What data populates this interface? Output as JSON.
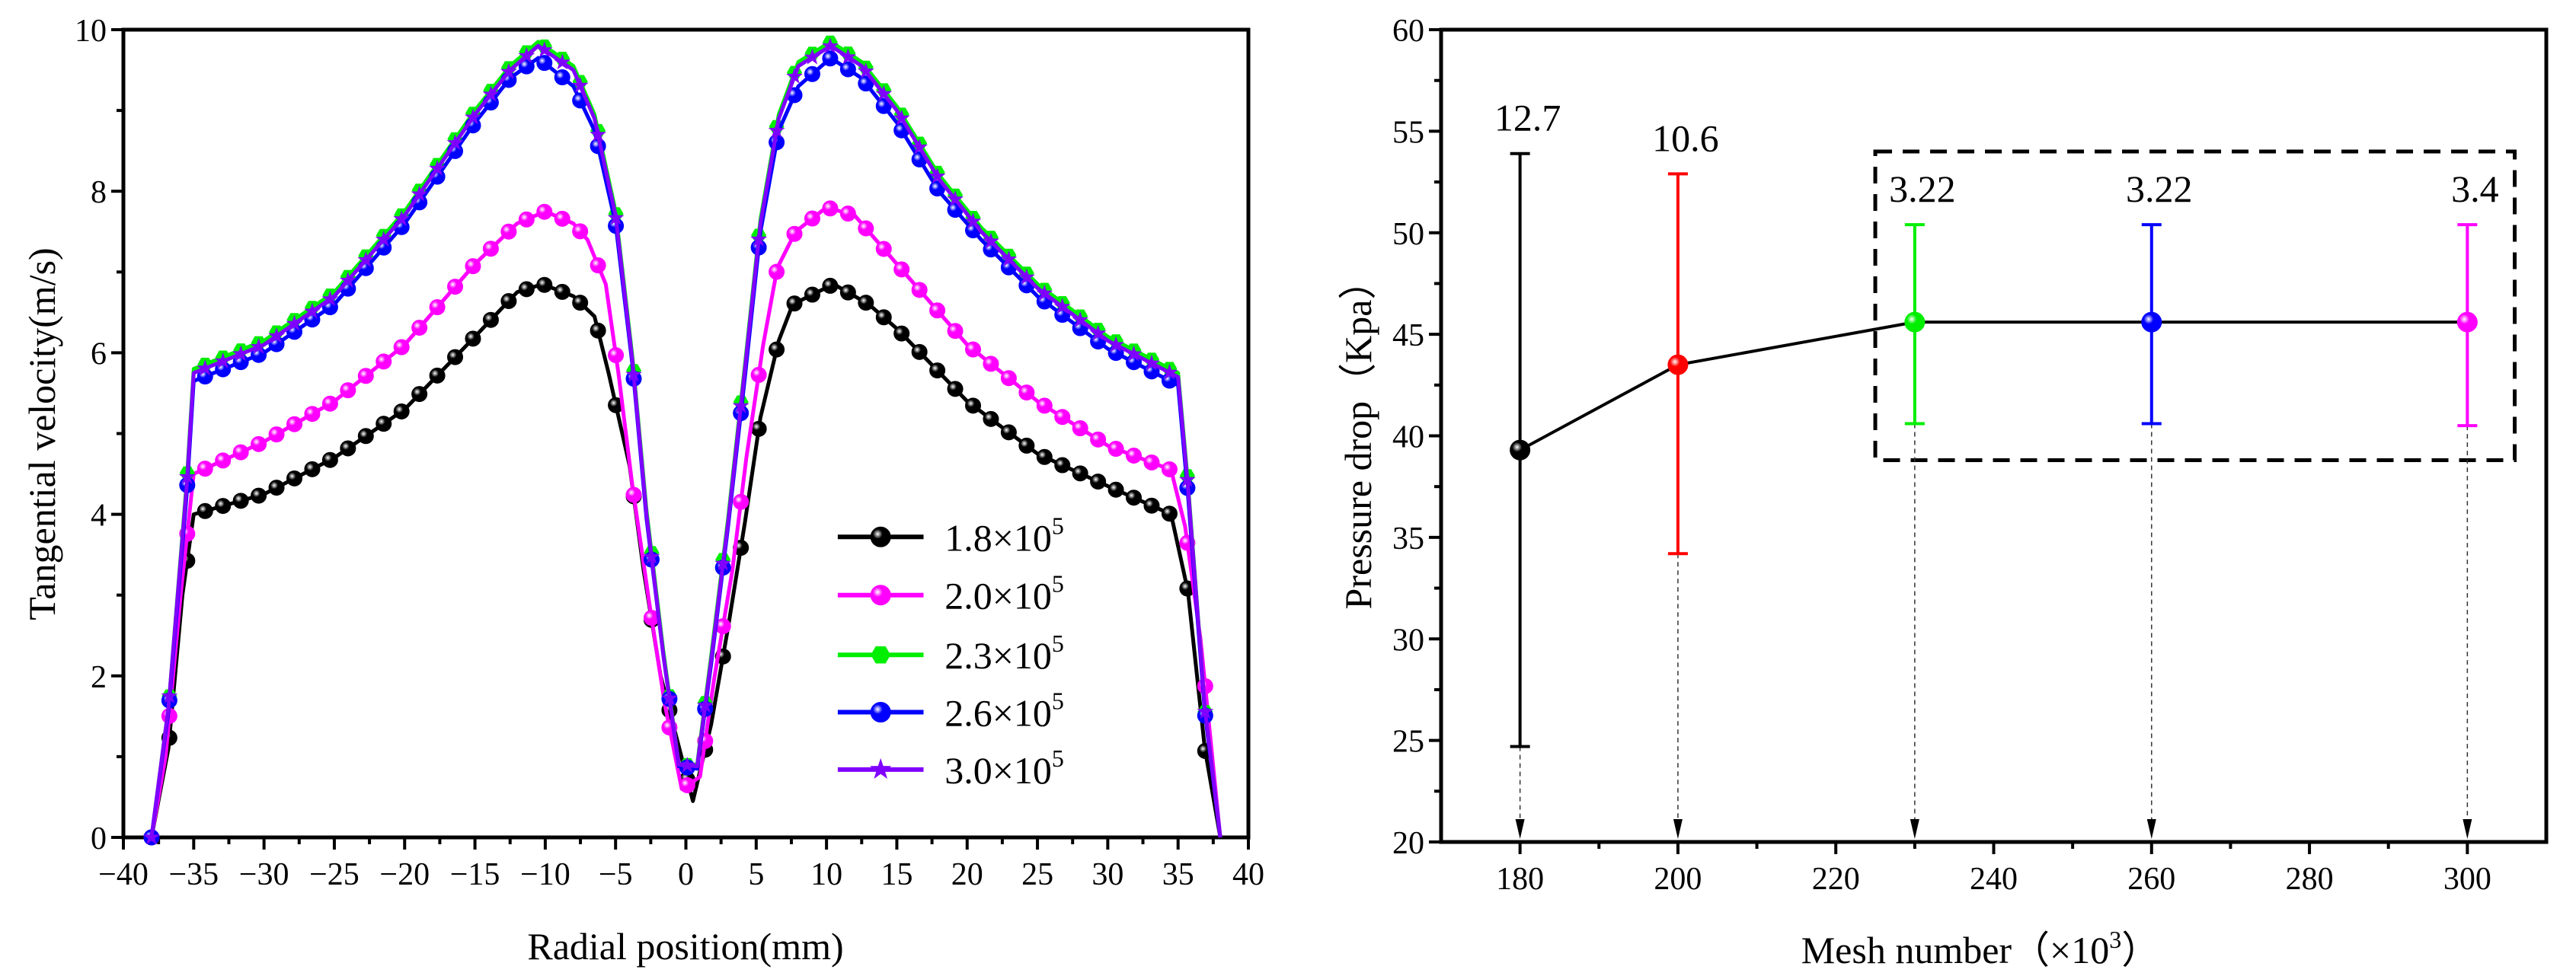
{
  "chart_data": [
    {
      "type": "line",
      "xlabel": "Radial position(mm)",
      "ylabel": "Tangential velocity(m/s)",
      "xlim": [
        -40,
        40
      ],
      "ylim": [
        0,
        10
      ],
      "xticks": [
        -40,
        -35,
        -30,
        -25,
        -20,
        -15,
        -10,
        -5,
        0,
        5,
        10,
        15,
        20,
        25,
        30,
        35,
        40
      ],
      "xtick_labels": [
        "−40",
        "−35",
        "−30",
        "−25",
        "−20",
        "−15",
        "−10",
        "−5",
        "0",
        "5",
        "10",
        "15",
        "20",
        "25",
        "30",
        "35",
        "40"
      ],
      "yticks": [
        0,
        2,
        4,
        6,
        8,
        10
      ],
      "ytick_labels": [
        "0",
        "2",
        "4",
        "6",
        "8",
        "10"
      ],
      "legend_position": "lower-right inside",
      "series": [
        {
          "name": "1.8×10",
          "sup": "5",
          "color": "#000000",
          "marker": "sphere",
          "x": [
            -38,
            -36.8,
            -35.8,
            -35,
            -30,
            -25,
            -20,
            -15,
            -12,
            -10.2,
            -8,
            -6.5,
            -5.5,
            -4,
            -3,
            -1.8,
            0.5,
            1.8,
            3,
            4.2,
            5.3,
            6.6,
            7.6,
            10.5,
            13,
            15,
            20,
            25,
            30,
            34.5,
            35.7,
            36.9,
            38
          ],
          "y": [
            0,
            1.1,
            3.0,
            4.0,
            4.25,
            4.7,
            5.3,
            6.2,
            6.75,
            6.85,
            6.7,
            6.45,
            5.75,
            4.6,
            3.3,
            2.0,
            0.45,
            1.4,
            2.6,
            3.9,
            5.2,
            6.15,
            6.6,
            6.85,
            6.6,
            6.3,
            5.4,
            4.75,
            4.35,
            4.0,
            3.05,
            1.1,
            0
          ]
        },
        {
          "name": "2.0×10",
          "sup": "5",
          "color": "#ff00ff",
          "marker": "sphere",
          "x": [
            -38,
            -37,
            -35.9,
            -35,
            -30,
            -25,
            -20,
            -15,
            -12,
            -10,
            -8,
            -7,
            -5.7,
            -4.8,
            -3.8,
            -2.6,
            -1.5,
            -0.3,
            1,
            2,
            3.3,
            4.3,
            5.5,
            6.5,
            7.8,
            10,
            12,
            15,
            20,
            25,
            30,
            34.5,
            35.5,
            36.6,
            38
          ],
          "y": [
            0,
            1.0,
            3.05,
            4.5,
            4.9,
            5.4,
            6.1,
            7.1,
            7.6,
            7.75,
            7.6,
            7.4,
            6.85,
            5.75,
            4.35,
            2.9,
            1.65,
            0.6,
            0.75,
            1.95,
            3.3,
            4.7,
            6.1,
            7.05,
            7.5,
            7.8,
            7.7,
            7.1,
            6.1,
            5.4,
            4.85,
            4.55,
            3.85,
            2.45,
            0
          ]
        },
        {
          "name": "2.3×10",
          "sup": "5",
          "color": "#00ee00",
          "marker": "hexagon",
          "x": [
            -38,
            -36.8,
            -35.5,
            -35,
            -30,
            -25,
            -20,
            -15,
            -12.5,
            -10.5,
            -8,
            -6.5,
            -5,
            -3.8,
            -2.8,
            -1.6,
            -0.5,
            0.8,
            1.8,
            3,
            4.2,
            5.3,
            6.6,
            8,
            10.3,
            12.5,
            15,
            18,
            21,
            25,
            30,
            35,
            35.7,
            36.9,
            38
          ],
          "y": [
            0,
            1.6,
            4.4,
            5.8,
            6.15,
            6.75,
            7.75,
            9.0,
            9.55,
            9.85,
            9.55,
            8.95,
            7.75,
            5.95,
            4.05,
            2.3,
            0.9,
            0.9,
            2.25,
            3.95,
            5.85,
            7.65,
            8.95,
            9.6,
            9.85,
            9.6,
            9.05,
            8.2,
            7.55,
            6.85,
            6.2,
            5.75,
            4.4,
            1.6,
            0
          ]
        },
        {
          "name": "2.6×10",
          "sup": "5",
          "color": "#0000ff",
          "marker": "sphere",
          "x": [
            -38,
            -36.8,
            -35.5,
            -35,
            -30,
            -25,
            -20,
            -15,
            -12.5,
            -10.5,
            -8,
            -6.5,
            -5,
            -3.8,
            -2.8,
            -1.6,
            -0.5,
            0.8,
            1.8,
            3,
            4.2,
            5.3,
            6.6,
            8,
            10.3,
            12.5,
            15,
            18,
            21,
            25,
            30,
            35,
            35.7,
            36.9,
            38
          ],
          "y": [
            0,
            1.55,
            4.25,
            5.65,
            6.0,
            6.6,
            7.6,
            8.85,
            9.4,
            9.65,
            9.3,
            8.75,
            7.6,
            5.85,
            3.95,
            2.25,
            0.88,
            0.85,
            2.15,
            3.85,
            5.7,
            7.5,
            8.75,
            9.3,
            9.65,
            9.4,
            8.85,
            8.0,
            7.4,
            6.7,
            6.05,
            5.6,
            4.25,
            1.55,
            0
          ]
        },
        {
          "name": "3.0×10",
          "sup": "5",
          "color": "#8000ff",
          "marker": "star",
          "x": [
            -38,
            -36.8,
            -35.5,
            -35,
            -30,
            -25,
            -20,
            -15,
            -12.5,
            -10.5,
            -8,
            -6.5,
            -5,
            -3.8,
            -2.8,
            -1.6,
            -0.5,
            0.8,
            1.8,
            3,
            4.2,
            5.3,
            6.6,
            8,
            10.3,
            12.5,
            15,
            18,
            21,
            25,
            30,
            35,
            35.7,
            36.9,
            38
          ],
          "y": [
            0,
            1.6,
            4.35,
            5.75,
            6.1,
            6.7,
            7.7,
            8.95,
            9.5,
            9.8,
            9.5,
            8.9,
            7.7,
            5.9,
            4.0,
            2.25,
            0.9,
            0.88,
            2.2,
            3.9,
            5.8,
            7.6,
            8.9,
            9.55,
            9.8,
            9.55,
            9.0,
            8.15,
            7.5,
            6.8,
            6.15,
            5.7,
            4.35,
            1.6,
            0
          ]
        }
      ]
    },
    {
      "type": "scatter",
      "xlabel": "Mesh number（×10",
      "xlabel_sup": "3",
      "xlabel_end": "）",
      "ylabel": "Pressure drop（Kpa）",
      "xlim": [
        170,
        310
      ],
      "ylim": [
        20,
        60
      ],
      "xticks": [
        180,
        200,
        220,
        240,
        260,
        280,
        300
      ],
      "xtick_labels": [
        "180",
        "200",
        "220",
        "240",
        "260",
        "280",
        "300"
      ],
      "yticks": [
        20,
        25,
        30,
        35,
        40,
        45,
        50,
        55,
        60
      ],
      "ytick_labels": [
        "20",
        "25",
        "30",
        "35",
        "40",
        "45",
        "50",
        "55",
        "60"
      ],
      "points": [
        {
          "x": 180,
          "y": 39.3,
          "err_low": 24.7,
          "err_high": 53.9,
          "label": "12.7",
          "color": "#000000"
        },
        {
          "x": 200,
          "y": 43.5,
          "err_low": 34.2,
          "err_high": 52.9,
          "label": "10.6",
          "color": "#ff0000"
        },
        {
          "x": 230,
          "y": 45.6,
          "err_low": 40.6,
          "err_high": 50.4,
          "label": "3.22",
          "color": "#00ee00"
        },
        {
          "x": 260,
          "y": 45.6,
          "err_low": 40.6,
          "err_high": 50.4,
          "label": "3.22",
          "color": "#0000ff"
        },
        {
          "x": 300,
          "y": 45.6,
          "err_low": 40.5,
          "err_high": 50.4,
          "label": "3.4",
          "color": "#ff00ff"
        }
      ],
      "highlight_box": {
        "x_range": [
          225,
          306
        ],
        "y_range": [
          38.8,
          54
        ]
      }
    }
  ]
}
